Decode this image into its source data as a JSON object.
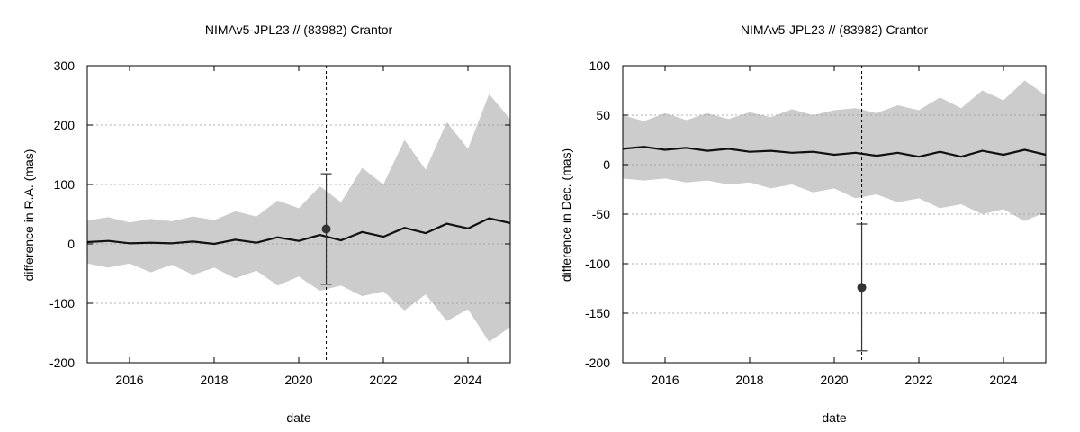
{
  "chart_data": [
    {
      "type": "line",
      "title": "NIMAv5-JPL23 // (83982) Crantor",
      "xlabel": "date",
      "ylabel": "difference in R.A. (mas)",
      "xlim": [
        2015.0,
        2025.0
      ],
      "ylim": [
        -200,
        300
      ],
      "xticks": [
        2016,
        2018,
        2020,
        2022,
        2024
      ],
      "xtick_labels": [
        "2016",
        "2018",
        "2020",
        "2022",
        "2024"
      ],
      "yticks": [
        -200,
        -100,
        0,
        100,
        200,
        300
      ],
      "ytick_labels": [
        "-200",
        "-100",
        "0",
        "100",
        "200",
        "300"
      ],
      "grid": true,
      "vline_x": 2020.65,
      "series": [
        {
          "kind": "band",
          "color": "#cccccc",
          "x": [
            2015.0,
            2015.5,
            2016.0,
            2016.5,
            2017.0,
            2017.5,
            2018.0,
            2018.5,
            2019.0,
            2019.5,
            2020.0,
            2020.5,
            2021.0,
            2021.5,
            2022.0,
            2022.5,
            2023.0,
            2023.5,
            2024.0,
            2024.5,
            2025.0
          ],
          "upper": [
            39,
            45,
            36,
            42,
            38,
            46,
            40,
            55,
            46,
            73,
            60,
            97,
            70,
            128,
            100,
            175,
            125,
            205,
            160,
            252,
            210
          ],
          "lower": [
            -33,
            -40,
            -33,
            -48,
            -35,
            -52,
            -40,
            -58,
            -45,
            -70,
            -55,
            -79,
            -70,
            -88,
            -80,
            -112,
            -85,
            -130,
            -110,
            -165,
            -140
          ]
        },
        {
          "kind": "line",
          "color": "#111111",
          "x": [
            2015.0,
            2015.5,
            2016.0,
            2016.5,
            2017.0,
            2017.5,
            2018.0,
            2018.5,
            2019.0,
            2019.5,
            2020.0,
            2020.5,
            2021.0,
            2021.5,
            2022.0,
            2022.5,
            2023.0,
            2023.5,
            2024.0,
            2024.5,
            2025.0
          ],
          "y": [
            3,
            5,
            1,
            2,
            1,
            4,
            0,
            7,
            2,
            11,
            5,
            15,
            6,
            20,
            12,
            27,
            18,
            34,
            26,
            43,
            35
          ]
        },
        {
          "kind": "point",
          "color": "#333333",
          "x": [
            2020.65
          ],
          "y": [
            25
          ],
          "yerr_low": [
            -68
          ],
          "yerr_high": [
            118
          ]
        }
      ]
    },
    {
      "type": "line",
      "title": "NIMAv5-JPL23 // (83982) Crantor",
      "xlabel": "date",
      "ylabel": "difference in Dec. (mas)",
      "xlim": [
        2015.0,
        2025.0
      ],
      "ylim": [
        -200,
        100
      ],
      "xticks": [
        2016,
        2018,
        2020,
        2022,
        2024
      ],
      "xtick_labels": [
        "2016",
        "2018",
        "2020",
        "2022",
        "2024"
      ],
      "yticks": [
        -200,
        -150,
        -100,
        -50,
        0,
        50,
        100
      ],
      "ytick_labels": [
        "-200",
        "-150",
        "-100",
        "-50",
        "0",
        "50",
        "100"
      ],
      "grid": true,
      "vline_x": 2020.65,
      "series": [
        {
          "kind": "band",
          "color": "#cccccc",
          "x": [
            2015.0,
            2015.5,
            2016.0,
            2016.5,
            2017.0,
            2017.5,
            2018.0,
            2018.5,
            2019.0,
            2019.5,
            2020.0,
            2020.5,
            2021.0,
            2021.5,
            2022.0,
            2022.5,
            2023.0,
            2023.5,
            2024.0,
            2024.5,
            2025.0
          ],
          "upper": [
            50,
            44,
            52,
            45,
            52,
            46,
            53,
            48,
            56,
            50,
            55,
            57,
            52,
            60,
            55,
            68,
            57,
            75,
            65,
            85,
            70
          ],
          "lower": [
            -14,
            -16,
            -14,
            -18,
            -16,
            -20,
            -18,
            -24,
            -20,
            -28,
            -24,
            -34,
            -30,
            -38,
            -34,
            -44,
            -40,
            -50,
            -45,
            -57,
            -48
          ]
        },
        {
          "kind": "line",
          "color": "#111111",
          "x": [
            2015.0,
            2015.5,
            2016.0,
            2016.5,
            2017.0,
            2017.5,
            2018.0,
            2018.5,
            2019.0,
            2019.5,
            2020.0,
            2020.5,
            2021.0,
            2021.5,
            2022.0,
            2022.5,
            2023.0,
            2023.5,
            2024.0,
            2024.5,
            2025.0
          ],
          "y": [
            16,
            18,
            15,
            17,
            14,
            16,
            13,
            14,
            12,
            13,
            10,
            12,
            9,
            12,
            8,
            13,
            8,
            14,
            10,
            15,
            10
          ]
        },
        {
          "kind": "point",
          "color": "#333333",
          "x": [
            2020.65
          ],
          "y": [
            -124
          ],
          "yerr_low": [
            -188
          ],
          "yerr_high": [
            -60
          ]
        }
      ]
    }
  ]
}
